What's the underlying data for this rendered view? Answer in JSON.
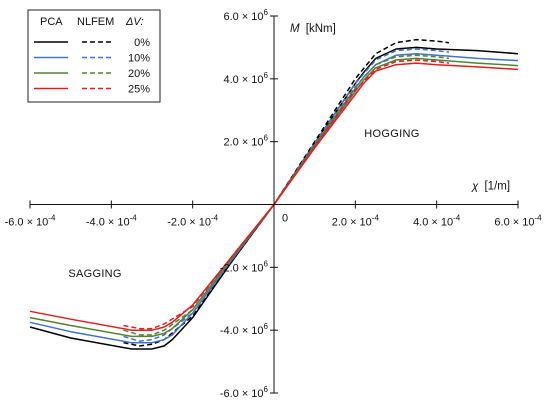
{
  "chart_data": {
    "type": "line",
    "xlabel_symbol": "χ",
    "xlabel_unit": "[1/m]",
    "ylabel_symbol": "M",
    "ylabel_unit": "[kNm]",
    "xlim": [
      -0.0006,
      0.0006
    ],
    "ylim": [
      -6000000,
      6000000
    ],
    "x_ticks": [
      {
        "value": -0.0006,
        "label": "-6.0 × 10",
        "exp": "-4"
      },
      {
        "value": -0.0004,
        "label": "-4.0 × 10",
        "exp": "-4"
      },
      {
        "value": -0.0002,
        "label": "-2.0 × 10",
        "exp": "-4"
      },
      {
        "value": 0.0002,
        "label": "2.0 × 10",
        "exp": "-4"
      },
      {
        "value": 0.0004,
        "label": "4.0 × 10",
        "exp": "-4"
      },
      {
        "value": 0.0006,
        "label": "6.0 × 10",
        "exp": "-4"
      }
    ],
    "y_ticks": [
      {
        "value": 6000000,
        "label": "6.0 × 10",
        "exp": "6"
      },
      {
        "value": 4000000,
        "label": "4.0 × 10",
        "exp": "6"
      },
      {
        "value": 2000000,
        "label": "2.0 × 10",
        "exp": "6"
      },
      {
        "value": -2000000,
        "label": "-2.0 × 10",
        "exp": "6"
      },
      {
        "value": -4000000,
        "label": "-4.0 × 10",
        "exp": "6"
      },
      {
        "value": -6000000,
        "label": "-6.0 × 10",
        "exp": "6"
      }
    ],
    "origin_label": "0",
    "regions": [
      {
        "label": "HOGGING",
        "x": 0.00029,
        "y": 2150000
      },
      {
        "label": "SAGGING",
        "x": -0.00044,
        "y": -2300000
      }
    ],
    "legend": {
      "position": "top-left",
      "col_pca": "PCA",
      "col_nlfem": "NLFEM",
      "col_dv": "ΔV:",
      "rows": [
        "0%",
        "10%",
        "20%",
        "25%"
      ]
    },
    "series": [
      {
        "name": "PCA 0%",
        "color": "#000000",
        "dash": false,
        "x": [
          -0.0006,
          -0.0005,
          -0.00035,
          -0.0003,
          -0.00027,
          -0.00025,
          -0.0002,
          -0.0001,
          0,
          0.0001,
          0.0002,
          0.00022,
          0.00025,
          0.0003,
          0.00035,
          0.0004,
          0.0005,
          0.0006
        ],
        "y": [
          -3900000,
          -4250000,
          -4600000,
          -4600000,
          -4500000,
          -4300000,
          -3600000,
          -1750000,
          0,
          1950000,
          3850000,
          4200000,
          4650000,
          4950000,
          5000000,
          4950000,
          4900000,
          4800000
        ]
      },
      {
        "name": "NLFEM 0%",
        "color": "#000000",
        "dash": true,
        "x": [
          -0.00037,
          -0.00033,
          -0.0003,
          -0.00027,
          -0.0002,
          -0.0001,
          0,
          0.0001,
          0.0002,
          0.00025,
          0.0003,
          0.00035,
          0.0004,
          0.00043
        ],
        "y": [
          -4400000,
          -4500000,
          -4450000,
          -4300000,
          -3550000,
          -1750000,
          0,
          2000000,
          4000000,
          4800000,
          5150000,
          5250000,
          5200000,
          5150000
        ]
      },
      {
        "name": "PCA 10%",
        "color": "#4472c4",
        "dash": false,
        "x": [
          -0.0006,
          -0.0005,
          -0.00035,
          -0.0003,
          -0.00027,
          -0.00025,
          -0.0002,
          -0.0001,
          0,
          0.0001,
          0.0002,
          0.00022,
          0.00025,
          0.0003,
          0.00035,
          0.0004,
          0.0005,
          0.0006
        ],
        "y": [
          -3750000,
          -4050000,
          -4400000,
          -4400000,
          -4300000,
          -4150000,
          -3450000,
          -1700000,
          0,
          1900000,
          3700000,
          4050000,
          4450000,
          4750000,
          4800000,
          4750000,
          4650000,
          4580000
        ]
      },
      {
        "name": "NLFEM 10%",
        "color": "#4472c4",
        "dash": true,
        "x": [
          -0.00037,
          -0.00033,
          -0.0003,
          -0.00027,
          -0.0002,
          -0.0001,
          0,
          0.0001,
          0.0002,
          0.00025,
          0.0003,
          0.00035,
          0.0004,
          0.00043
        ],
        "y": [
          -4200000,
          -4350000,
          -4300000,
          -4150000,
          -3450000,
          -1700000,
          0,
          1950000,
          3850000,
          4600000,
          4900000,
          4950000,
          4900000,
          4850000
        ]
      },
      {
        "name": "PCA 20%",
        "color": "#548235",
        "dash": false,
        "x": [
          -0.0006,
          -0.0005,
          -0.00035,
          -0.0003,
          -0.00027,
          -0.00025,
          -0.0002,
          -0.0001,
          0,
          0.0001,
          0.0002,
          0.00022,
          0.00025,
          0.0003,
          0.00035,
          0.0004,
          0.0005,
          0.0006
        ],
        "y": [
          -3600000,
          -3850000,
          -4200000,
          -4200000,
          -4100000,
          -3950000,
          -3350000,
          -1650000,
          0,
          1850000,
          3600000,
          3950000,
          4350000,
          4600000,
          4650000,
          4600000,
          4500000,
          4420000
        ]
      },
      {
        "name": "NLFEM 20%",
        "color": "#548235",
        "dash": true,
        "x": [
          -0.00037,
          -0.00033,
          -0.0003,
          -0.00027,
          -0.0002,
          -0.0001,
          0,
          0.0001,
          0.0002,
          0.00025,
          0.0003,
          0.00035,
          0.0004,
          0.00043
        ],
        "y": [
          -4000000,
          -4150000,
          -4150000,
          -4000000,
          -3350000,
          -1650000,
          0,
          1900000,
          3750000,
          4450000,
          4700000,
          4750000,
          4700000,
          4650000
        ]
      },
      {
        "name": "PCA 25%",
        "color": "#e02020",
        "dash": false,
        "x": [
          -0.0006,
          -0.0005,
          -0.00035,
          -0.0003,
          -0.00027,
          -0.00025,
          -0.0002,
          -0.0001,
          0,
          0.0001,
          0.0002,
          0.00022,
          0.00025,
          0.0003,
          0.00035,
          0.0004,
          0.0005,
          0.0006
        ],
        "y": [
          -3400000,
          -3650000,
          -4000000,
          -4000000,
          -3900000,
          -3750000,
          -3200000,
          -1600000,
          0,
          1800000,
          3500000,
          3850000,
          4250000,
          4450000,
          4500000,
          4450000,
          4380000,
          4300000
        ]
      },
      {
        "name": "NLFEM 25%",
        "color": "#e02020",
        "dash": true,
        "x": [
          -0.00037,
          -0.00033,
          -0.0003,
          -0.00027,
          -0.0002,
          -0.0001,
          0,
          0.0001,
          0.0002,
          0.00025,
          0.0003,
          0.00035,
          0.0004,
          0.00043
        ],
        "y": [
          -3850000,
          -3950000,
          -3950000,
          -3800000,
          -3250000,
          -1600000,
          0,
          1850000,
          3650000,
          4300000,
          4550000,
          4600000,
          4550000,
          4500000
        ]
      }
    ]
  }
}
